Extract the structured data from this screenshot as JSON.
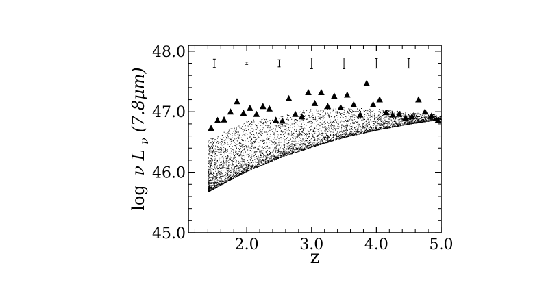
{
  "chart_data": {
    "type": "scatter",
    "title": "",
    "xlabel": "z",
    "ylabel_parts": {
      "log": "log",
      "nu": "ν",
      "L": "L",
      "sub": "ν",
      "arg": "(7.8μm)"
    },
    "xlim": [
      1.1,
      5.0
    ],
    "ylim": [
      45.0,
      48.1
    ],
    "x_ticks": [
      {
        "v": 2.0,
        "label": "2.0"
      },
      {
        "v": 3.0,
        "label": "3.0"
      },
      {
        "v": 4.0,
        "label": "4.0"
      },
      {
        "v": 5.0,
        "label": "5.0"
      }
    ],
    "y_ticks": [
      {
        "v": 45.0,
        "label": "45.0"
      },
      {
        "v": 46.0,
        "label": "46.0"
      },
      {
        "v": 47.0,
        "label": "47.0"
      },
      {
        "v": 48.0,
        "label": "48.0"
      }
    ],
    "series": [
      {
        "marker": "dot",
        "description_free": true,
        "lower_envelope": [
          [
            1.4,
            45.68
          ],
          [
            2.0,
            46.02
          ],
          [
            2.5,
            46.24
          ],
          [
            3.0,
            46.42
          ],
          [
            3.5,
            46.58
          ],
          [
            4.0,
            46.7
          ],
          [
            4.5,
            46.8
          ],
          [
            5.0,
            46.88
          ]
        ],
        "upper_envelope": [
          [
            1.4,
            46.55
          ],
          [
            2.0,
            46.85
          ],
          [
            2.5,
            46.95
          ],
          [
            3.0,
            47.05
          ],
          [
            3.5,
            47.07
          ],
          [
            4.0,
            47.05
          ],
          [
            4.5,
            47.0
          ],
          [
            5.0,
            46.95
          ]
        ]
      },
      {
        "marker": "triangle",
        "x": [
          1.45,
          1.55,
          1.65,
          1.75,
          1.85,
          1.95,
          2.05,
          2.15,
          2.25,
          2.35,
          2.45,
          2.55,
          2.65,
          2.75,
          2.85,
          2.95,
          3.05,
          3.15,
          3.25,
          3.35,
          3.45,
          3.55,
          3.65,
          3.75,
          3.85,
          3.95,
          4.05,
          4.15,
          4.25,
          4.35,
          4.45,
          4.55,
          4.65,
          4.75,
          4.85,
          4.95
        ],
        "y": [
          46.73,
          46.86,
          46.87,
          47.0,
          47.17,
          46.98,
          47.06,
          46.96,
          47.09,
          47.05,
          46.86,
          46.85,
          47.22,
          46.96,
          46.92,
          47.32,
          47.14,
          47.32,
          47.09,
          47.26,
          47.07,
          47.28,
          47.12,
          46.95,
          47.47,
          47.12,
          47.2,
          46.99,
          46.95,
          46.96,
          46.9,
          46.92,
          47.2,
          47.0,
          46.93,
          46.86
        ]
      }
    ],
    "error_bars": {
      "y_center": 47.8,
      "x": [
        1.5,
        2.0,
        2.5,
        3.0,
        3.5,
        4.0,
        4.5
      ],
      "half_height": [
        0.07,
        0.02,
        0.06,
        0.09,
        0.09,
        0.08,
        0.08
      ]
    },
    "grid": false,
    "legend": "none"
  }
}
